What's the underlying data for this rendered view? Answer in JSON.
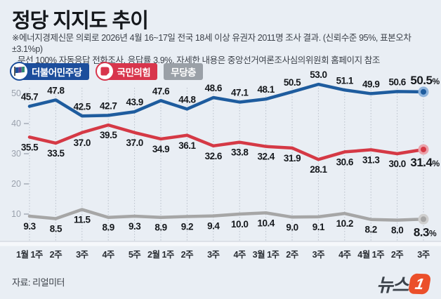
{
  "header": {
    "title": "정당 지지도 추이",
    "subtitle_line1": "※에너지경제신문 의뢰로 2026년 4월 16~17일 전국 18세 이상 유권자 2011명 조사 결과. (신뢰수준 95%, 표본오차 ±3.1%p)",
    "subtitle_line2": "무선 100% 자동응답 전화조사, 응답률 3.9%, 자세한 내용은 중앙선거여론조사심의위원회 홈페이지 참조"
  },
  "legend": {
    "items": [
      {
        "label": "더불어민주당",
        "color": "#1c4e9c",
        "icon": "minjoo-flag-icon"
      },
      {
        "label": "국민의힘",
        "color": "#d8354c",
        "icon": "ppp-symbol-icon"
      },
      {
        "label": "무당층",
        "color": "#9aa0a7",
        "icon": null
      }
    ]
  },
  "chart_data": {
    "type": "line",
    "title": "정당 지지도 추이",
    "categories": [
      "1월 1주",
      "2주",
      "3주",
      "4주",
      "5주",
      "2월 1주",
      "2주",
      "3주",
      "4주",
      "3월 1주",
      "2주",
      "3주",
      "4주",
      "4월 1주",
      "2주",
      "3주"
    ],
    "series": [
      {
        "name": "더불어민주당",
        "color": "#1e5c9e",
        "halo": "#8fb4dc",
        "label_position": "above",
        "values": [
          45.7,
          47.8,
          42.5,
          42.7,
          43.9,
          47.6,
          44.8,
          48.6,
          47.1,
          48.1,
          50.5,
          53.0,
          51.1,
          49.9,
          50.6,
          50.5
        ]
      },
      {
        "name": "국민의힘",
        "color": "#d53945",
        "halo": "#eba3ab",
        "label_position": "below",
        "values": [
          35.5,
          33.5,
          37.0,
          39.5,
          37.0,
          34.9,
          36.1,
          32.6,
          33.8,
          32.4,
          31.9,
          28.1,
          30.6,
          31.3,
          30.0,
          31.4
        ]
      },
      {
        "name": "무당층",
        "color": "#a6a6a6",
        "halo": "#cfcfcf",
        "label_position": "below",
        "values": [
          9.3,
          8.5,
          11.5,
          8.9,
          9.3,
          8.9,
          9.2,
          9.4,
          10.0,
          10.4,
          9.0,
          9.1,
          10.2,
          8.2,
          8.0,
          8.3
        ]
      }
    ],
    "yticks": [
      10,
      20,
      30,
      40,
      50
    ],
    "ylim": [
      0,
      57
    ],
    "grid": "vertical-dotted",
    "legend_position": "top-left",
    "last_value_suffix": "%"
  },
  "footer": {
    "source": "자료: 리얼미터",
    "logo_text": "뉴스",
    "logo_badge": "1"
  }
}
